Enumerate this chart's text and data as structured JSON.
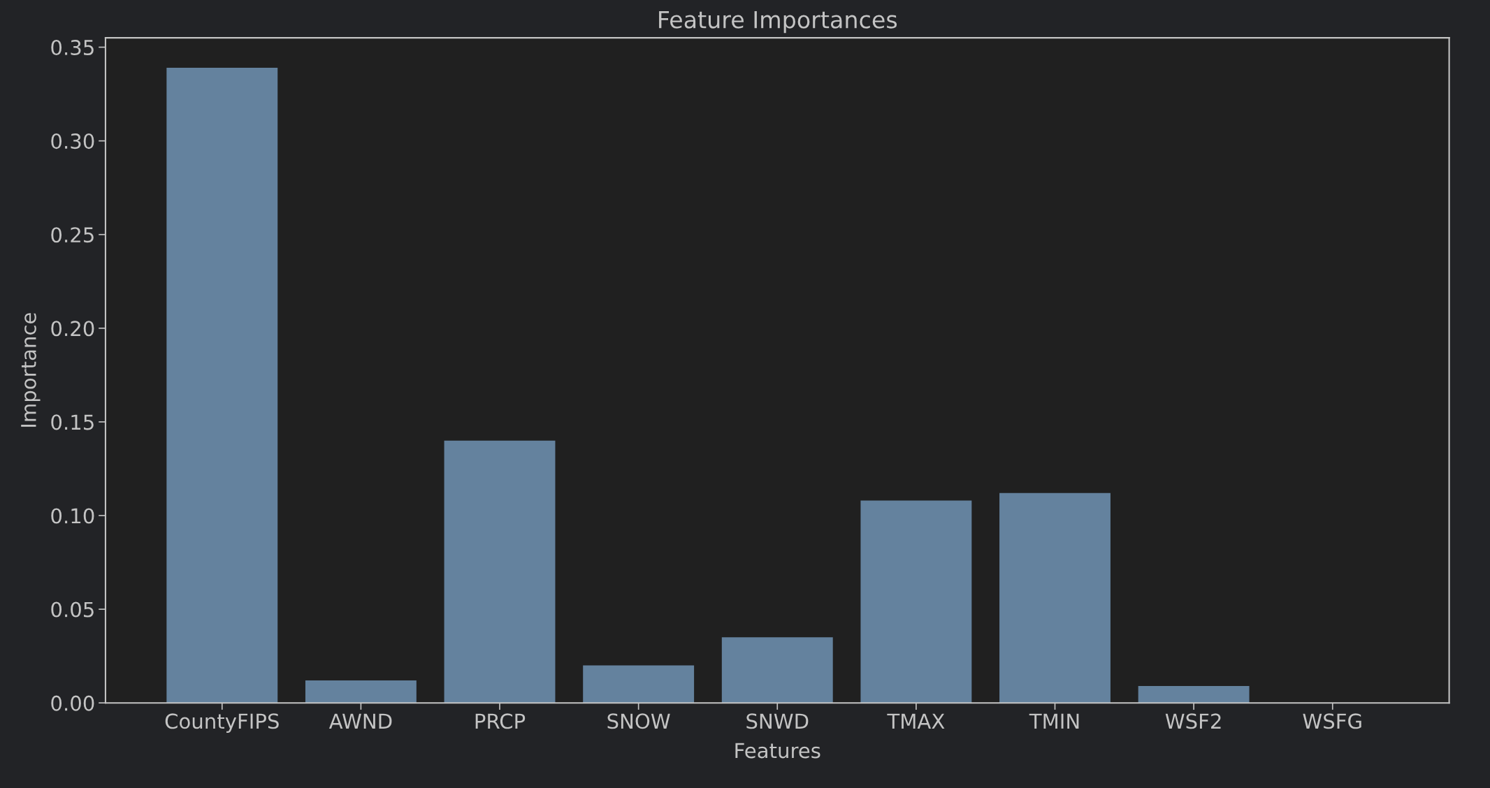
{
  "chart_data": {
    "type": "bar",
    "title": "Feature Importances",
    "xlabel": "Features",
    "ylabel": "Importance",
    "categories": [
      "CountyFIPS",
      "AWND",
      "PRCP",
      "SNOW",
      "SNWD",
      "TMAX",
      "TMIN",
      "WSF2",
      "WSFG"
    ],
    "values": [
      0.339,
      0.012,
      0.14,
      0.02,
      0.035,
      0.108,
      0.112,
      0.009,
      0.0
    ],
    "color": "#64829e",
    "ylim": [
      0,
      0.355
    ],
    "yticks": [
      {
        "value": 0,
        "label": "0.00"
      },
      {
        "value": 0.05,
        "label": "0.05"
      },
      {
        "value": 0.1,
        "label": "0.10"
      },
      {
        "value": 0.15,
        "label": "0.15"
      },
      {
        "value": 0.2,
        "label": "0.20"
      },
      {
        "value": 0.25,
        "label": "0.25"
      },
      {
        "value": 0.3,
        "label": "0.30"
      },
      {
        "value": 0.35,
        "label": "0.35"
      }
    ],
    "grid": false
  }
}
